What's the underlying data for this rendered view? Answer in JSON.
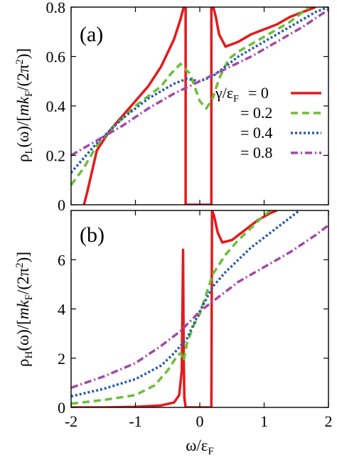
{
  "chart_data": [
    {
      "type": "line",
      "panel_label": "(a)",
      "ylabel": "ρL(ω)/[mkF/(2π²)]",
      "xlabel": "",
      "xlim": [
        -2,
        2
      ],
      "ylim": [
        0,
        0.8
      ],
      "yticks": [
        "0",
        "0.2",
        "0.4",
        "0.6",
        "0.8"
      ],
      "legend_title": "γ/εF",
      "legend_placement": "right-center",
      "series": [
        {
          "name": "= 0",
          "color": "#e41a1c",
          "dash": "solid",
          "x": [
            -1.8,
            -1.79,
            -1.75,
            -1.6,
            -1.4,
            -1.2,
            -1.0,
            -0.8,
            -0.6,
            -0.4,
            -0.3,
            -0.25,
            -0.24,
            -0.22,
            -0.22,
            0.18,
            0.18,
            0.2,
            0.21,
            0.25,
            0.3,
            0.4,
            0.6,
            0.8,
            1.0,
            1.2,
            1.4,
            1.6,
            1.8
          ],
          "y": [
            0.0,
            0.01,
            0.05,
            0.22,
            0.3,
            0.36,
            0.42,
            0.48,
            0.56,
            0.67,
            0.75,
            0.8,
            0.8,
            0.8,
            0.0,
            0.0,
            0.8,
            0.8,
            0.8,
            0.76,
            0.69,
            0.64,
            0.66,
            0.69,
            0.71,
            0.73,
            0.76,
            0.78,
            0.8
          ]
        },
        {
          "name": "= 0.2",
          "color": "#6abf3a",
          "dash": "10,6",
          "x": [
            -2.0,
            -1.8,
            -1.6,
            -1.4,
            -1.2,
            -1.0,
            -0.8,
            -0.6,
            -0.45,
            -0.3,
            -0.15,
            0.0,
            0.1,
            0.2,
            0.3,
            0.45,
            0.6,
            0.8,
            1.0,
            1.2,
            1.4,
            1.7
          ],
          "y": [
            0.08,
            0.15,
            0.24,
            0.3,
            0.35,
            0.4,
            0.44,
            0.48,
            0.53,
            0.57,
            0.53,
            0.42,
            0.39,
            0.43,
            0.51,
            0.59,
            0.62,
            0.65,
            0.68,
            0.71,
            0.74,
            0.8
          ]
        },
        {
          "name": "= 0.4",
          "color": "#2a5caa",
          "dash": "3,3",
          "x": [
            -2.0,
            -1.8,
            -1.6,
            -1.4,
            -1.2,
            -1.0,
            -0.8,
            -0.6,
            -0.4,
            -0.2,
            0.0,
            0.2,
            0.4,
            0.6,
            0.8,
            1.0,
            1.2,
            1.4,
            1.6,
            1.8,
            2.0
          ],
          "y": [
            0.13,
            0.19,
            0.25,
            0.3,
            0.35,
            0.39,
            0.43,
            0.46,
            0.49,
            0.51,
            0.5,
            0.52,
            0.56,
            0.6,
            0.63,
            0.66,
            0.69,
            0.72,
            0.75,
            0.78,
            0.8
          ]
        },
        {
          "name": "= 0.8",
          "color": "#a24aa5",
          "dash": "10,4,2,4",
          "x": [
            -2.0,
            -1.6,
            -1.2,
            -0.8,
            -0.4,
            0.0,
            0.4,
            0.8,
            1.2,
            1.6,
            2.0
          ],
          "y": [
            0.2,
            0.26,
            0.32,
            0.39,
            0.45,
            0.5,
            0.55,
            0.6,
            0.66,
            0.72,
            0.79
          ]
        }
      ]
    },
    {
      "type": "line",
      "panel_label": "(b)",
      "ylabel": "ρH(ω)/[mkF/(2π²)]",
      "xlabel": "ω/εF",
      "xlim": [
        -2,
        2
      ],
      "ylim": [
        0,
        8
      ],
      "yticks": [
        "0",
        "2",
        "4",
        "6"
      ],
      "xticks": [
        "-2",
        "-1",
        "0",
        "1",
        "2"
      ],
      "series": [
        {
          "name": "= 0",
          "color": "#e41a1c",
          "dash": "solid",
          "x": [
            -2.0,
            -1.5,
            -1.0,
            -0.6,
            -0.4,
            -0.32,
            -0.28,
            -0.26,
            -0.25,
            -0.24,
            -0.22,
            -0.22,
            0.18,
            0.18,
            0.19,
            0.22,
            0.28,
            0.35,
            0.5,
            0.7,
            0.9,
            1.1,
            1.2
          ],
          "y": [
            0.0,
            0.0,
            0.02,
            0.08,
            0.2,
            0.5,
            1.5,
            6.4,
            2.0,
            0.4,
            0.0,
            0.0,
            0.0,
            0.0,
            8.0,
            7.8,
            7.1,
            6.7,
            6.8,
            7.2,
            7.6,
            7.9,
            8.0
          ]
        },
        {
          "name": "= 0.2",
          "color": "#6abf3a",
          "dash": "10,6",
          "x": [
            -2.0,
            -1.5,
            -1.0,
            -0.7,
            -0.5,
            -0.35,
            -0.3,
            -0.25,
            -0.2,
            -0.1,
            0.0,
            0.1,
            0.2,
            0.4,
            0.6,
            0.8,
            1.0,
            1.1
          ],
          "y": [
            0.15,
            0.3,
            0.5,
            0.9,
            1.5,
            2.1,
            2.2,
            1.9,
            2.6,
            3.3,
            3.8,
            4.6,
            5.4,
            6.2,
            6.8,
            7.3,
            7.8,
            8.0
          ]
        },
        {
          "name": "= 0.4",
          "color": "#2a5caa",
          "dash": "3,3",
          "x": [
            -2.0,
            -1.5,
            -1.0,
            -0.6,
            -0.4,
            -0.2,
            0.0,
            0.2,
            0.4,
            0.6,
            0.8,
            1.0,
            1.2,
            1.4,
            1.55
          ],
          "y": [
            0.45,
            0.75,
            1.15,
            1.7,
            2.2,
            2.8,
            3.9,
            4.9,
            5.5,
            6.0,
            6.5,
            6.9,
            7.3,
            7.7,
            8.0
          ]
        },
        {
          "name": "= 0.8",
          "color": "#a24aa5",
          "dash": "10,4,2,4",
          "x": [
            -2.0,
            -1.5,
            -1.0,
            -0.6,
            -0.3,
            0.0,
            0.3,
            0.6,
            1.0,
            1.4,
            1.8,
            2.0
          ],
          "y": [
            0.8,
            1.25,
            1.8,
            2.5,
            3.1,
            3.9,
            4.5,
            5.1,
            5.7,
            6.3,
            7.0,
            7.4
          ]
        }
      ]
    }
  ]
}
